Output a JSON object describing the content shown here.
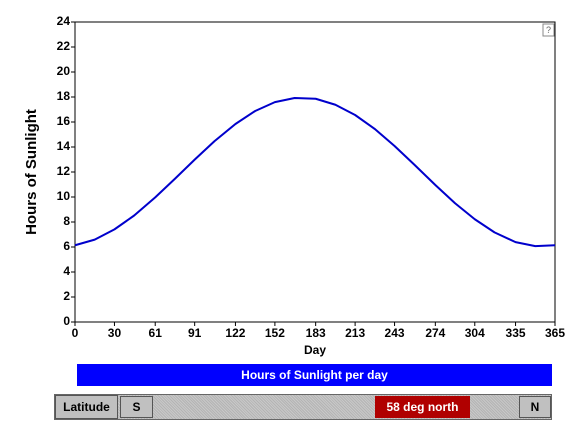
{
  "chart_data": {
    "type": "line",
    "ylabel": "Hours of Sunlight",
    "xlabel": "Day",
    "help": "?",
    "x": [
      0,
      15,
      30,
      45,
      61,
      76,
      91,
      106,
      122,
      137,
      152,
      167,
      183,
      198,
      213,
      228,
      243,
      258,
      274,
      289,
      304,
      319,
      335,
      350,
      365
    ],
    "series": [
      {
        "name": "Hours of Sunlight per day",
        "color": "#0000cc",
        "values": [
          6.14,
          6.59,
          7.41,
          8.52,
          9.97,
          11.46,
          12.99,
          14.46,
          15.84,
          16.88,
          17.59,
          17.92,
          17.86,
          17.38,
          16.56,
          15.44,
          14.08,
          12.59,
          10.96,
          9.5,
          8.22,
          7.17,
          6.39,
          6.07,
          6.14
        ]
      }
    ],
    "xlim": [
      0,
      365
    ],
    "ylim": [
      0,
      24
    ],
    "xticks": [
      0,
      30,
      61,
      91,
      122,
      152,
      183,
      213,
      243,
      274,
      304,
      335,
      365
    ],
    "yticks": [
      0,
      2,
      4,
      6,
      8,
      10,
      12,
      14,
      16,
      18,
      20,
      22,
      24
    ]
  },
  "controls": {
    "latitude_label": "Latitude",
    "south_button": "S",
    "slider_value": "58 deg north",
    "north_button": "N"
  }
}
